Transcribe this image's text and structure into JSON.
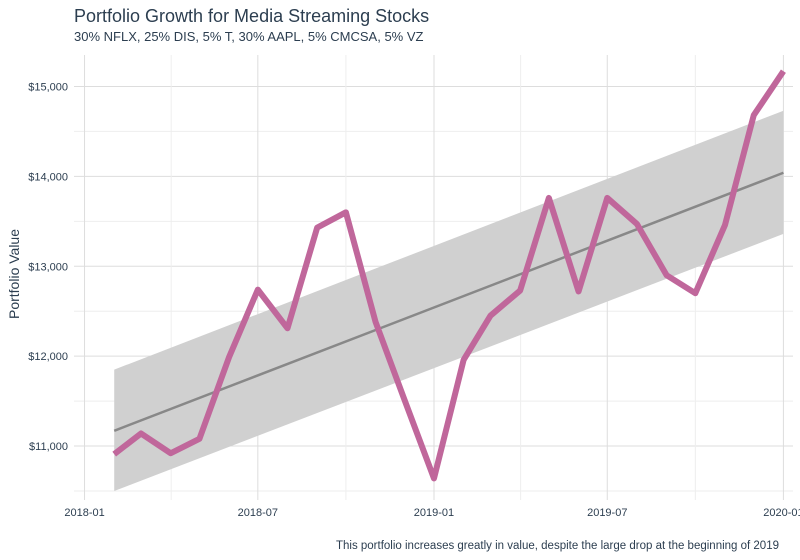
{
  "chart_data": {
    "type": "line",
    "title": "Portfolio Growth for Media Streaming Stocks",
    "subtitle": "30% NFLX, 25% DIS, 5% T, 30% AAPL, 5% CMCSA, 5% VZ",
    "caption": "This portfolio increases greatly in value, despite the large drop at the beginning of 2019",
    "xlabel": "",
    "ylabel": "Portfolio Value",
    "x_tick_labels": [
      "2018-01",
      "2018-07",
      "2019-01",
      "2019-07",
      "2020-01"
    ],
    "y_tick_labels": [
      "$11,000",
      "$12,000",
      "$13,000",
      "$14,000",
      "$15,000"
    ],
    "y_ticks": [
      11000,
      12000,
      13000,
      14000,
      15000
    ],
    "ylim": [
      10400,
      15350
    ],
    "xlim": [
      "2017-12-21",
      "2020-01-11"
    ],
    "grid": true,
    "series": [
      {
        "color": "#c0679b",
        "points": [
          {
            "x": "2018-02-01",
            "y": 10910
          },
          {
            "x": "2018-03-01",
            "y": 11140
          },
          {
            "x": "2018-04-01",
            "y": 10920
          },
          {
            "x": "2018-05-01",
            "y": 11080
          },
          {
            "x": "2018-06-01",
            "y": 11990
          },
          {
            "x": "2018-07-01",
            "y": 12740
          },
          {
            "x": "2018-08-01",
            "y": 12310
          },
          {
            "x": "2018-09-01",
            "y": 13430
          },
          {
            "x": "2018-10-01",
            "y": 13600
          },
          {
            "x": "2018-11-01",
            "y": 12380
          },
          {
            "x": "2018-12-01",
            "y": 11520
          },
          {
            "x": "2019-01-01",
            "y": 10640
          },
          {
            "x": "2019-02-01",
            "y": 11960
          },
          {
            "x": "2019-03-01",
            "y": 12450
          },
          {
            "x": "2019-04-01",
            "y": 12730
          },
          {
            "x": "2019-05-01",
            "y": 13760
          },
          {
            "x": "2019-06-01",
            "y": 12720
          },
          {
            "x": "2019-07-01",
            "y": 13760
          },
          {
            "x": "2019-08-01",
            "y": 13470
          },
          {
            "x": "2019-09-01",
            "y": 12900
          },
          {
            "x": "2019-10-01",
            "y": 12700
          },
          {
            "x": "2019-11-01",
            "y": 13460
          },
          {
            "x": "2019-12-01",
            "y": 14680
          },
          {
            "x": "2020-01-01",
            "y": 15170
          }
        ]
      }
    ],
    "trend": {
      "color": "#888888",
      "band_color": "#d0d0d0",
      "start": {
        "x": "2018-02-01",
        "y": 11170,
        "lower": 10500,
        "upper": 11850
      },
      "end": {
        "x": "2020-01-01",
        "y": 14040,
        "lower": 13360,
        "upper": 14730
      }
    }
  }
}
